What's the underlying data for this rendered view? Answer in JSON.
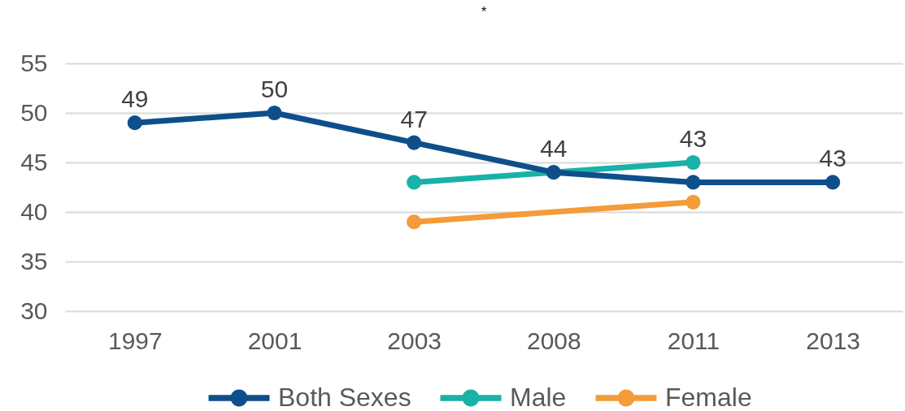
{
  "chart_data": {
    "type": "line",
    "title": "*",
    "categories": [
      "1997",
      "2001",
      "2003",
      "2008",
      "2011",
      "2013"
    ],
    "series": [
      {
        "name": "Both Sexes",
        "color": "#0e4f8b",
        "values": [
          49,
          50,
          47,
          44,
          43,
          43
        ],
        "value_labels": [
          "49",
          "50",
          "47",
          "44",
          "43",
          "43"
        ]
      },
      {
        "name": "Male",
        "color": "#18b2a6",
        "values": [
          null,
          null,
          43,
          null,
          45,
          null
        ]
      },
      {
        "name": "Female",
        "color": "#f49b3a",
        "values": [
          null,
          null,
          39,
          null,
          41,
          null
        ]
      }
    ],
    "ylim": [
      30,
      55
    ],
    "yticks": [
      30,
      35,
      40,
      45,
      50,
      55
    ],
    "grid": "y",
    "legend": "bottom",
    "marker": "circle",
    "line_style": "solid"
  }
}
